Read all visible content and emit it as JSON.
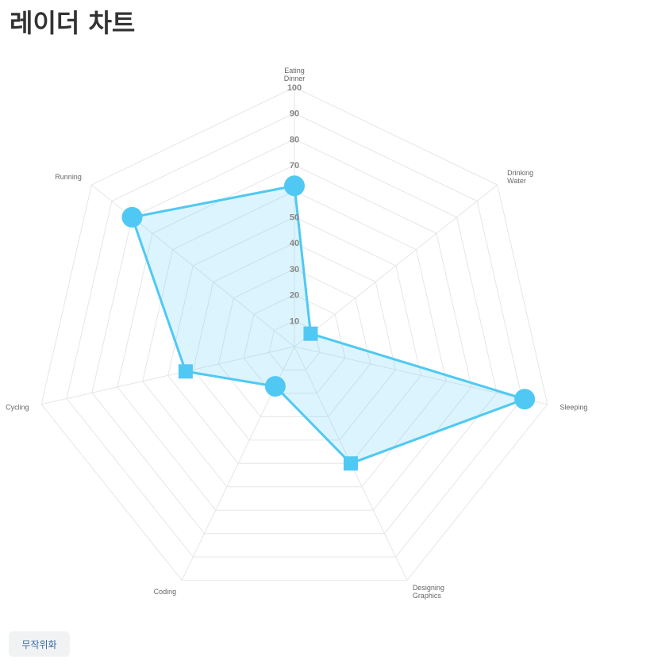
{
  "page": {
    "title": "레이더 차트"
  },
  "controls": {
    "randomize_label": "무작위화"
  },
  "colors": {
    "series": "#4fc9f3",
    "fill": "rgba(79,201,243,0.2)",
    "grid": "#e6e6e6"
  },
  "chart_data": {
    "type": "radar",
    "categories": [
      [
        "Eating",
        "Dinner"
      ],
      [
        "Drinking",
        "Water"
      ],
      [
        "Sleeping"
      ],
      [
        "Designing",
        "Graphics"
      ],
      [
        "Coding"
      ],
      [
        "Cycling"
      ],
      [
        "Running"
      ]
    ],
    "ticks": [
      "10",
      "20",
      "30",
      "40",
      "50",
      "70",
      "80",
      "90",
      "100"
    ],
    "tick_values": [
      10,
      20,
      30,
      40,
      50,
      70,
      80,
      90,
      100
    ],
    "grid_levels": 10,
    "range": [
      0,
      100
    ],
    "series": [
      {
        "values": [
          62,
          8,
          91,
          50,
          17,
          43,
          80
        ],
        "point_styles": [
          "circle",
          "rect",
          "circle",
          "rect",
          "circle",
          "rect",
          "circle"
        ]
      }
    ]
  }
}
